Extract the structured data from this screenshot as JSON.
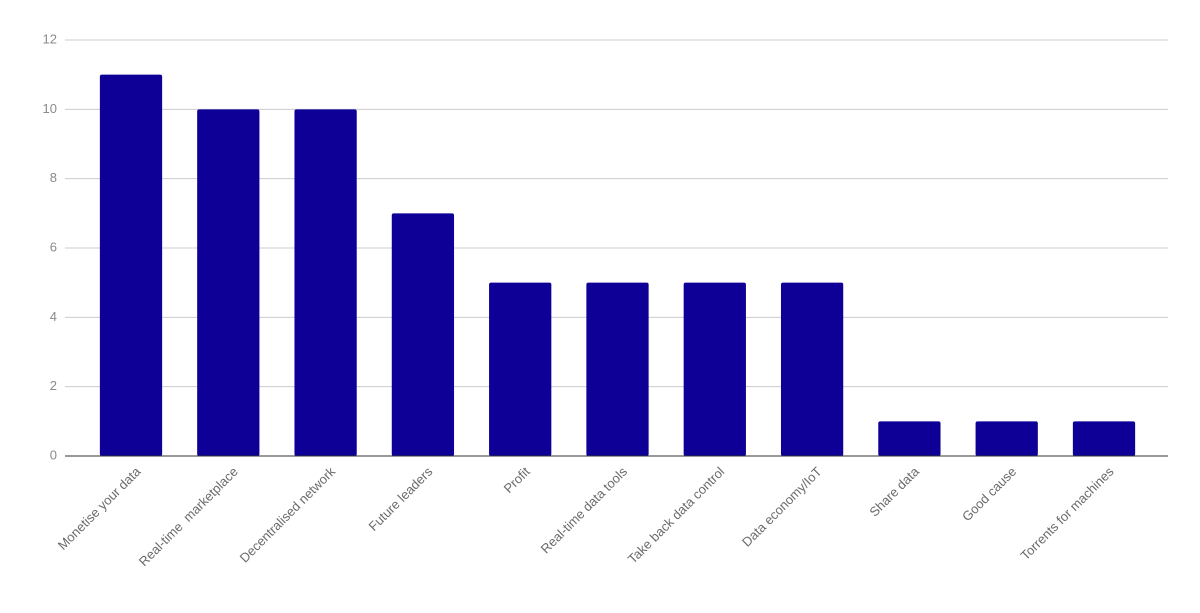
{
  "chart_data": {
    "type": "bar",
    "categories": [
      "Monetise your data",
      "Real-time  marketplace",
      "Decentralised network",
      "Future leaders",
      "Profit",
      "Real-time data tools",
      "Take back data control",
      "Data economy/IoT",
      "Share data",
      "Good cause",
      "Torrents for machines"
    ],
    "values": [
      11,
      10,
      10,
      7,
      5,
      5,
      5,
      5,
      1,
      1,
      1
    ],
    "color": "#0e0096",
    "ylim": [
      0,
      12
    ],
    "yticks": [
      0,
      2,
      4,
      6,
      8,
      10,
      12
    ],
    "grid": true
  }
}
